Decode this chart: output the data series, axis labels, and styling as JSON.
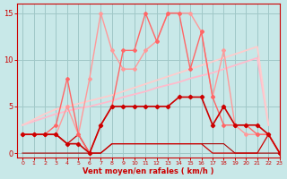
{
  "xlabel": "Vent moyen/en rafales ( km/h )",
  "xlim": [
    -0.5,
    23
  ],
  "ylim": [
    -0.5,
    16
  ],
  "yticks": [
    0,
    5,
    10,
    15
  ],
  "xticks": [
    0,
    1,
    2,
    3,
    4,
    5,
    6,
    7,
    8,
    9,
    10,
    11,
    12,
    13,
    14,
    15,
    16,
    17,
    18,
    19,
    20,
    21,
    22,
    23
  ],
  "background_color": "#c8e8e8",
  "grid_color": "#a0c8c8",
  "lines": [
    {
      "x": [
        0,
        1,
        2,
        3,
        4,
        5,
        6,
        7,
        8,
        9,
        10,
        11,
        12,
        13,
        14,
        15,
        16,
        17,
        18,
        19,
        20,
        21,
        22
      ],
      "y": [
        3,
        3.4,
        3.8,
        4.2,
        4.5,
        4.8,
        5.0,
        5.3,
        5.6,
        6.0,
        6.3,
        6.6,
        7.0,
        7.3,
        7.6,
        8.0,
        8.3,
        8.6,
        9.0,
        9.4,
        9.8,
        10.2,
        3
      ],
      "color": "#ffbbcc",
      "lw": 1.3,
      "marker": null,
      "ms": 0,
      "zorder": 2
    },
    {
      "x": [
        0,
        1,
        2,
        3,
        4,
        5,
        6,
        7,
        8,
        9,
        10,
        11,
        12,
        13,
        14,
        15,
        16,
        17,
        18,
        19,
        20,
        21,
        22
      ],
      "y": [
        3,
        3.6,
        4.2,
        4.7,
        5.0,
        5.3,
        5.6,
        5.9,
        6.2,
        6.6,
        7.0,
        7.4,
        7.8,
        8.2,
        8.6,
        9.0,
        9.4,
        9.8,
        10.2,
        10.6,
        11.0,
        11.4,
        3
      ],
      "color": "#ffcccc",
      "lw": 1.3,
      "marker": null,
      "ms": 0,
      "zorder": 2
    },
    {
      "x": [
        0,
        1,
        2,
        3,
        4,
        5,
        6,
        7,
        8,
        9,
        10,
        11,
        12,
        13,
        14,
        15,
        16,
        17,
        18,
        19,
        20,
        21,
        22,
        23
      ],
      "y": [
        2,
        2,
        2,
        3,
        8,
        2,
        0,
        3,
        5,
        11,
        11,
        15,
        12,
        15,
        15,
        9,
        13,
        6,
        3,
        3,
        3,
        2,
        2,
        0
      ],
      "color": "#ff6666",
      "lw": 1.0,
      "marker": "D",
      "ms": 2.0,
      "zorder": 5
    },
    {
      "x": [
        0,
        1,
        2,
        3,
        4,
        5,
        6,
        7,
        8,
        9,
        10,
        11,
        12,
        13,
        14,
        15,
        16,
        17,
        18,
        19,
        20,
        21,
        22,
        23
      ],
      "y": [
        2,
        2,
        2,
        2,
        5,
        2,
        8,
        15,
        11,
        9,
        9,
        11,
        12,
        15,
        15,
        15,
        13,
        6,
        11,
        3,
        2,
        2,
        2,
        0
      ],
      "color": "#ff9999",
      "lw": 1.0,
      "marker": "D",
      "ms": 2.0,
      "zorder": 4
    },
    {
      "x": [
        0,
        1,
        2,
        3,
        4,
        5,
        6,
        7,
        8,
        9,
        10,
        11,
        12,
        13,
        14,
        15,
        16,
        17,
        18,
        19,
        20,
        21,
        22,
        23
      ],
      "y": [
        2,
        2,
        2,
        2,
        1,
        1,
        0,
        3,
        5,
        5,
        5,
        5,
        5,
        5,
        6,
        6,
        6,
        3,
        5,
        3,
        3,
        3,
        2,
        0
      ],
      "color": "#cc0000",
      "lw": 1.2,
      "marker": "D",
      "ms": 2.2,
      "zorder": 6
    },
    {
      "x": [
        0,
        1,
        2,
        3,
        4,
        5,
        6,
        7,
        8,
        9,
        10,
        11,
        12,
        13,
        14,
        15,
        16,
        17,
        18,
        19,
        20,
        21,
        22,
        23
      ],
      "y": [
        2,
        2,
        2,
        2,
        1,
        2,
        0,
        0,
        1,
        1,
        1,
        1,
        1,
        1,
        1,
        1,
        1,
        0,
        0,
        0,
        0,
        0,
        2,
        0
      ],
      "color": "#cc0000",
      "lw": 0.9,
      "marker": null,
      "ms": 0,
      "zorder": 3
    },
    {
      "x": [
        0,
        1,
        2,
        3,
        4,
        5,
        6,
        7,
        8,
        9,
        10,
        11,
        12,
        13,
        14,
        15,
        16,
        17,
        18,
        19,
        20,
        21,
        22,
        23
      ],
      "y": [
        0,
        0,
        0,
        0,
        0,
        0,
        0,
        0,
        1,
        1,
        1,
        1,
        1,
        1,
        1,
        1,
        1,
        1,
        1,
        0,
        0,
        0,
        0,
        0
      ],
      "color": "#aa0000",
      "lw": 0.8,
      "marker": null,
      "ms": 0,
      "zorder": 2
    }
  ]
}
